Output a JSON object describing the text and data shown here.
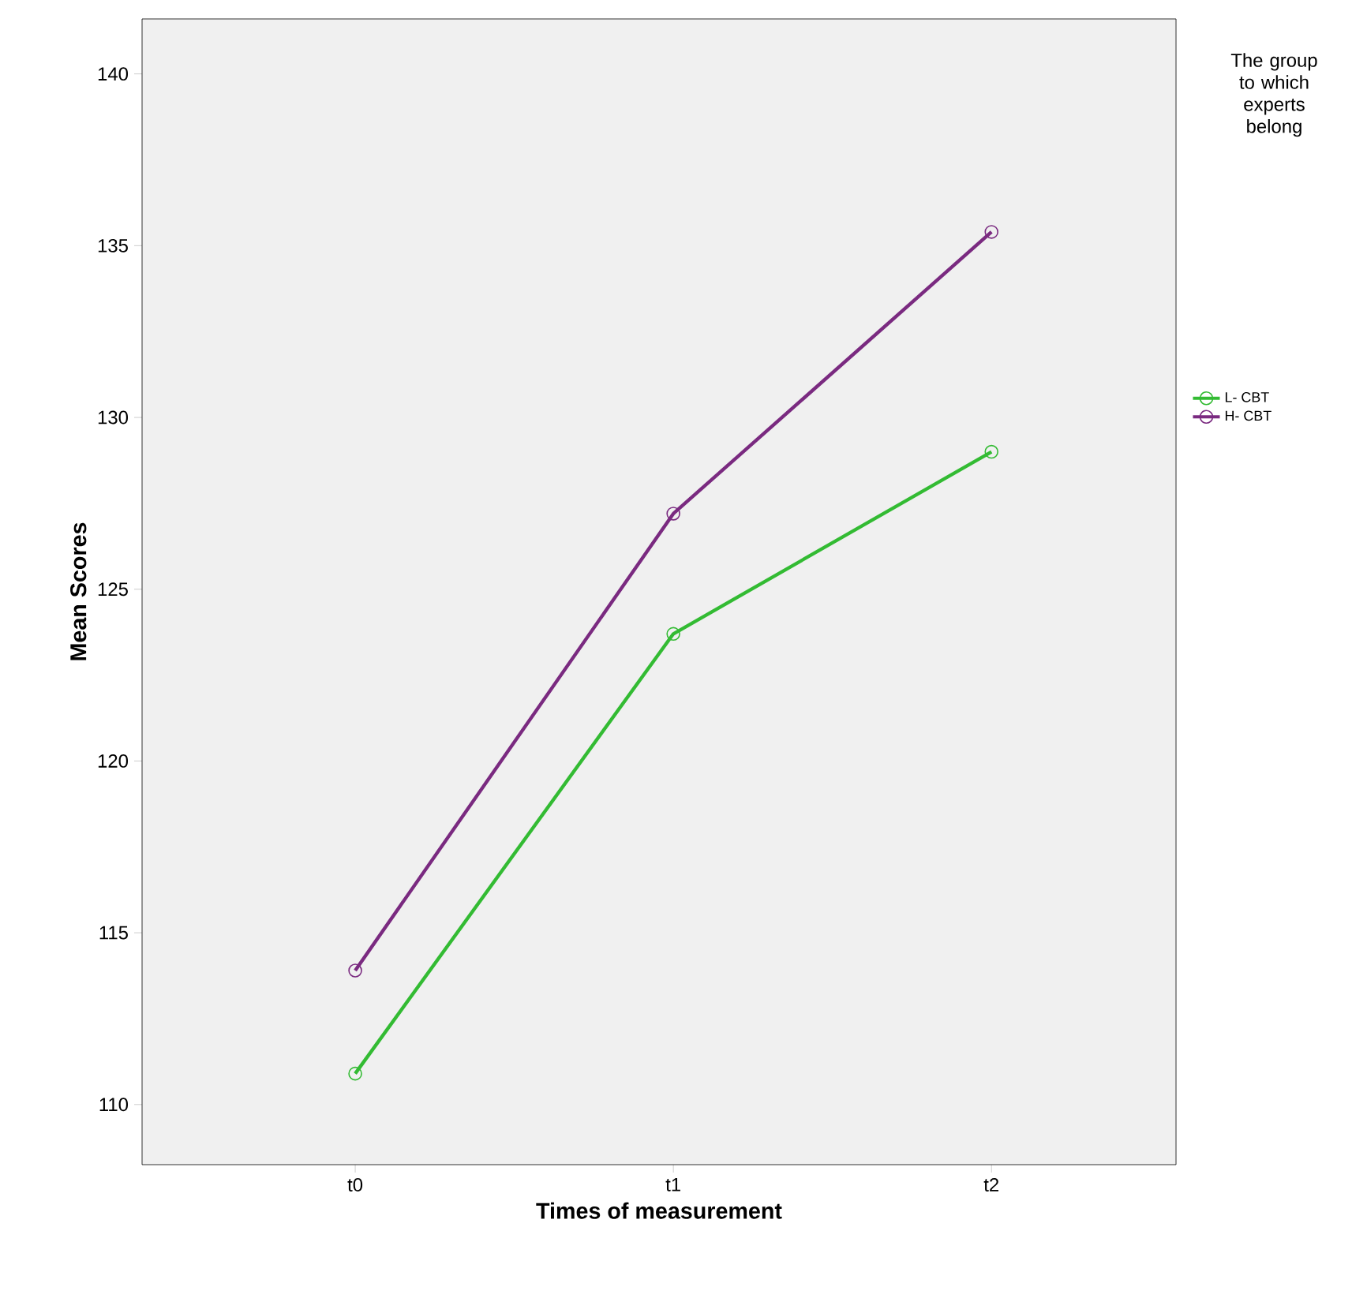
{
  "chart_data": {
    "type": "line",
    "xlabel": "Times of measurement",
    "ylabel": "Mean Scores",
    "legend_title": "The group to which experts belong",
    "categories": [
      "t0",
      "t1",
      "t2"
    ],
    "series": [
      {
        "name": "L- CBT",
        "color": "#33bb33",
        "values": [
          110.9,
          123.7,
          129.0
        ]
      },
      {
        "name": "H- CBT",
        "color": "#7a2a80",
        "values": [
          113.9,
          127.2,
          135.4
        ]
      }
    ],
    "ylim": [
      108.25,
      141.6
    ],
    "yticks": [
      110,
      115,
      120,
      125,
      130,
      135,
      140
    ],
    "grid": false,
    "legend": "right",
    "marker": "circle",
    "line_style": "solid"
  }
}
